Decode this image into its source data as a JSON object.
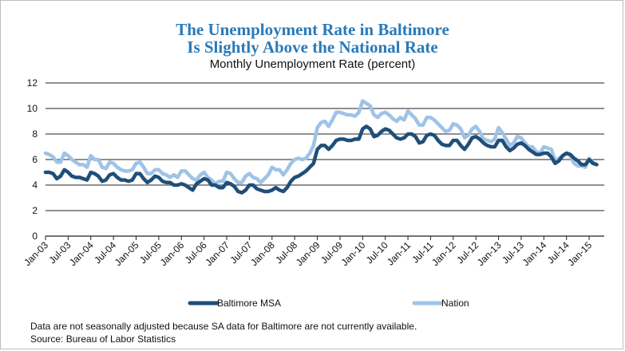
{
  "chart_data": {
    "type": "line",
    "title_line1": "The Unemployment Rate in Baltimore",
    "title_line2": "Is Slightly Above the National Rate",
    "subtitle": "Monthly Unemployment Rate (percent)",
    "xlabel": "",
    "ylabel": "",
    "ylim": [
      0,
      12
    ],
    "yticks": [
      0,
      2,
      4,
      6,
      8,
      10,
      12
    ],
    "grid": "horizontal",
    "legend_position": "bottom",
    "x_start": "Jan-03",
    "x_end": "Apr-15",
    "xticks": [
      "Jan-03",
      "Jul-03",
      "Jan-04",
      "Jul-04",
      "Jan-05",
      "Jul-05",
      "Jan-06",
      "Jul-06",
      "Jan-07",
      "Jul-07",
      "Jan-08",
      "Jul-08",
      "Jan-09",
      "Jul-09",
      "Jan-10",
      "Jul-10",
      "Jan-11",
      "Jul-11",
      "Jan-12",
      "Jul-12",
      "Jan-13",
      "Jul-13",
      "Jan-14",
      "Jul-14",
      "Jan-15"
    ],
    "series": [
      {
        "name": "Baltimore MSA",
        "color": "#1f4e79",
        "values": [
          5.0,
          5.0,
          4.9,
          4.5,
          4.7,
          5.2,
          5.0,
          4.7,
          4.6,
          4.6,
          4.5,
          4.4,
          5.0,
          4.9,
          4.7,
          4.3,
          4.4,
          4.8,
          4.9,
          4.6,
          4.4,
          4.4,
          4.3,
          4.4,
          4.9,
          4.9,
          4.5,
          4.2,
          4.4,
          4.7,
          4.6,
          4.3,
          4.2,
          4.2,
          4.0,
          4.0,
          4.1,
          4.0,
          3.8,
          3.6,
          4.1,
          4.3,
          4.5,
          4.4,
          4.0,
          4.0,
          3.8,
          3.8,
          4.2,
          4.1,
          3.9,
          3.5,
          3.4,
          3.6,
          4.0,
          4.0,
          3.7,
          3.6,
          3.5,
          3.5,
          3.6,
          3.8,
          3.6,
          3.5,
          3.8,
          4.3,
          4.6,
          4.7,
          4.9,
          5.1,
          5.4,
          5.7,
          6.8,
          7.1,
          7.1,
          6.8,
          7.1,
          7.5,
          7.6,
          7.6,
          7.5,
          7.5,
          7.6,
          7.6,
          8.4,
          8.6,
          8.4,
          7.8,
          7.9,
          8.2,
          8.4,
          8.3,
          8.0,
          7.7,
          7.6,
          7.7,
          8.0,
          8.0,
          7.8,
          7.3,
          7.4,
          7.9,
          8.0,
          7.9,
          7.5,
          7.2,
          7.1,
          7.1,
          7.5,
          7.5,
          7.1,
          6.8,
          7.2,
          7.7,
          7.8,
          7.6,
          7.3,
          7.1,
          7.0,
          7.0,
          7.5,
          7.5,
          7.0,
          6.7,
          6.9,
          7.2,
          7.3,
          7.1,
          6.8,
          6.6,
          6.4,
          6.4,
          6.5,
          6.5,
          6.2,
          5.7,
          5.9,
          6.3,
          6.5,
          6.4,
          6.1,
          5.9,
          5.6,
          5.6,
          6.0,
          5.7,
          5.6
        ]
      },
      {
        "name": "Nation",
        "color": "#9fc3e7",
        "values": [
          6.5,
          6.4,
          6.2,
          5.8,
          5.8,
          6.5,
          6.3,
          6.0,
          5.8,
          5.6,
          5.6,
          5.4,
          6.3,
          6.0,
          6.0,
          5.4,
          5.3,
          5.8,
          5.7,
          5.4,
          5.2,
          5.1,
          5.1,
          5.2,
          5.7,
          5.8,
          5.4,
          4.9,
          4.9,
          5.2,
          5.2,
          4.9,
          4.8,
          4.6,
          4.8,
          4.6,
          5.1,
          5.1,
          4.8,
          4.5,
          4.4,
          4.8,
          5.0,
          4.6,
          4.4,
          4.1,
          4.3,
          4.3,
          5.0,
          4.9,
          4.5,
          4.2,
          4.2,
          4.7,
          4.9,
          4.6,
          4.5,
          4.2,
          4.5,
          4.8,
          5.4,
          5.2,
          5.2,
          4.8,
          5.2,
          5.7,
          6.0,
          6.1,
          6.0,
          6.1,
          6.5,
          7.1,
          8.5,
          8.9,
          9.0,
          8.6,
          9.1,
          9.7,
          9.7,
          9.6,
          9.5,
          9.5,
          9.4,
          9.7,
          10.6,
          10.4,
          10.2,
          9.5,
          9.3,
          9.6,
          9.7,
          9.5,
          9.2,
          9.0,
          9.3,
          9.1,
          9.8,
          9.5,
          9.2,
          8.7,
          8.7,
          9.3,
          9.3,
          9.1,
          8.8,
          8.5,
          8.2,
          8.3,
          8.8,
          8.7,
          8.4,
          7.7,
          7.9,
          8.4,
          8.6,
          8.2,
          7.6,
          7.5,
          7.4,
          7.6,
          8.5,
          8.1,
          7.6,
          7.1,
          7.3,
          7.8,
          7.7,
          7.3,
          7.0,
          7.0,
          6.6,
          6.5,
          7.0,
          6.9,
          6.8,
          5.9,
          6.1,
          6.3,
          6.5,
          6.3,
          5.7,
          5.5,
          5.5,
          5.4,
          6.1,
          5.8,
          5.6
        ]
      }
    ]
  },
  "footnote_line1": "Data are not seasonally adjusted because SA data for Baltimore are not currently available.",
  "footnote_line2": "Source: Bureau of Labor Statistics"
}
